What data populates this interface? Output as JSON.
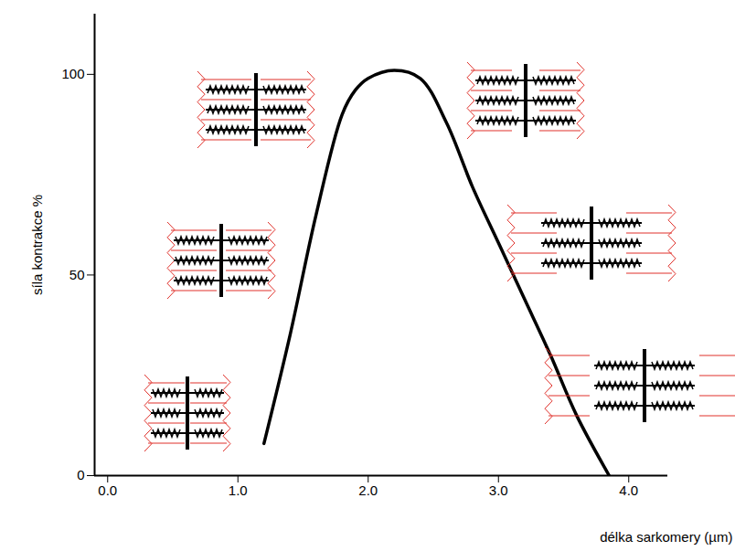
{
  "chart_data": {
    "type": "line",
    "x_label": "délka sarkomery (µm)",
    "y_label": "síla kontrakce %",
    "x": [
      1.2,
      1.4,
      1.6,
      1.8,
      1.9,
      2.0,
      2.2,
      2.4,
      2.6,
      2.8,
      3.0,
      3.2,
      3.4,
      3.6,
      3.85
    ],
    "values": [
      8,
      35,
      65,
      90,
      96,
      99,
      101,
      99,
      88,
      72,
      58,
      44,
      30,
      15,
      0
    ],
    "color": "#000000",
    "xlim": [
      -0.1,
      4.3
    ],
    "ylim": [
      0,
      115
    ],
    "xticks": [
      0,
      1,
      2,
      3,
      4
    ],
    "yticks": [
      0,
      50,
      100
    ]
  }
}
